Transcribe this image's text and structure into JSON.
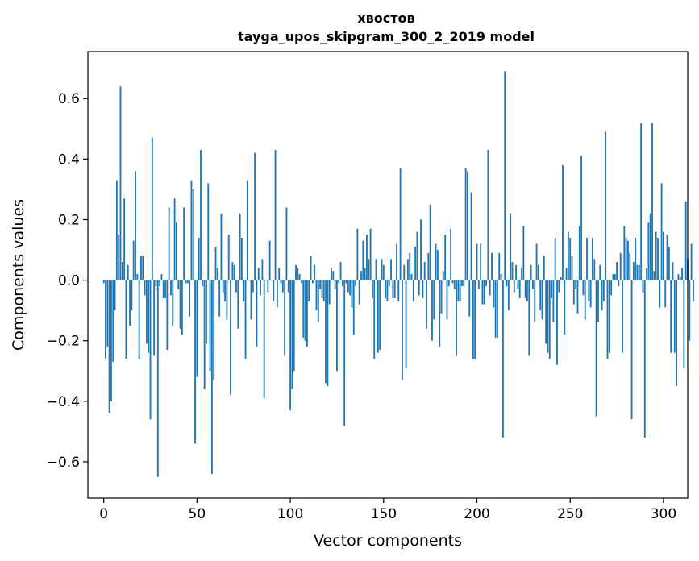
{
  "chart_data": {
    "type": "bar",
    "title": "хвостов",
    "subtitle": "tayga_upos_skipgram_300_2_2019 model",
    "xlabel": "Vector components",
    "ylabel": "Components values",
    "xlim": [
      -8.5,
      313
    ],
    "ylim": [
      -0.72,
      0.755
    ],
    "xticks": [
      0,
      50,
      100,
      150,
      200,
      250,
      300
    ],
    "yticks": [
      -0.6,
      -0.4,
      -0.2,
      0.0,
      0.2,
      0.4,
      0.6
    ],
    "xtick_labels": [
      "0",
      "50",
      "100",
      "150",
      "200",
      "250",
      "300"
    ],
    "ytick_labels": [
      "−0.6",
      "−0.4",
      "−0.2",
      "0.0",
      "0.2",
      "0.4",
      "0.6"
    ],
    "bar_color": "#1f77b4",
    "values": [
      -0.01,
      -0.26,
      -0.22,
      -0.44,
      -0.4,
      -0.27,
      -0.1,
      0.33,
      0.15,
      0.64,
      0.06,
      0.27,
      -0.26,
      0.05,
      -0.15,
      -0.1,
      0.13,
      0.36,
      0.02,
      -0.26,
      0.08,
      0.08,
      -0.05,
      -0.21,
      -0.24,
      -0.46,
      0.47,
      -0.25,
      -0.02,
      -0.65,
      -0.02,
      0.02,
      -0.06,
      -0.06,
      -0.23,
      0.24,
      -0.05,
      -0.15,
      0.27,
      0.19,
      -0.03,
      -0.16,
      -0.18,
      0.24,
      -0.01,
      -0.01,
      -0.12,
      0.33,
      0.3,
      -0.54,
      -0.32,
      0.14,
      0.43,
      -0.02,
      -0.36,
      -0.21,
      0.32,
      -0.3,
      -0.64,
      -0.33,
      0.11,
      0.04,
      -0.12,
      0.22,
      -0.04,
      -0.07,
      -0.13,
      0.15,
      -0.38,
      0.06,
      0.05,
      -0.04,
      -0.16,
      0.22,
      0.14,
      -0.07,
      -0.26,
      0.33,
      0.0,
      -0.13,
      -0.04,
      0.42,
      -0.22,
      0.04,
      -0.05,
      0.07,
      -0.39,
      0.0,
      -0.04,
      0.13,
      0.0,
      -0.07,
      0.43,
      -0.09,
      0.04,
      -0.01,
      -0.04,
      -0.25,
      0.24,
      -0.04,
      -0.43,
      -0.36,
      -0.3,
      0.05,
      0.04,
      0.02,
      -0.01,
      -0.19,
      -0.2,
      -0.22,
      -0.07,
      0.08,
      -0.01,
      0.05,
      -0.1,
      -0.14,
      -0.03,
      -0.06,
      -0.07,
      -0.34,
      -0.35,
      -0.08,
      0.04,
      0.03,
      -0.03,
      -0.3,
      -0.01,
      0.06,
      -0.02,
      -0.48,
      -0.01,
      -0.04,
      -0.05,
      -0.09,
      -0.18,
      -0.02,
      0.17,
      -0.08,
      0.03,
      0.13,
      0.04,
      0.15,
      0.07,
      0.17,
      -0.06,
      -0.26,
      0.07,
      -0.24,
      -0.23,
      0.07,
      0.05,
      -0.06,
      -0.07,
      -0.02,
      0.07,
      -0.06,
      -0.06,
      0.12,
      -0.07,
      0.37,
      -0.33,
      0.05,
      -0.29,
      0.07,
      0.09,
      0.02,
      -0.07,
      0.11,
      0.16,
      -0.05,
      0.2,
      -0.06,
      0.06,
      -0.16,
      0.09,
      0.25,
      -0.2,
      -0.13,
      0.12,
      0.1,
      -0.22,
      -0.11,
      0.03,
      0.15,
      -0.13,
      -0.02,
      0.17,
      -0.01,
      -0.03,
      -0.25,
      -0.07,
      -0.07,
      -0.02,
      -0.02,
      0.37,
      0.36,
      -0.12,
      0.29,
      -0.26,
      -0.26,
      0.12,
      -0.03,
      0.12,
      -0.08,
      -0.08,
      -0.02,
      0.43,
      -0.05,
      0.09,
      -0.09,
      -0.19,
      -0.19,
      0.09,
      0.02,
      -0.52,
      0.69,
      -0.02,
      -0.1,
      0.22,
      0.06,
      -0.04,
      0.05,
      -0.03,
      -0.06,
      0.04,
      0.18,
      -0.06,
      -0.07,
      -0.25,
      0.05,
      -0.03,
      -0.14,
      0.12,
      0.05,
      -0.1,
      -0.13,
      0.08,
      -0.21,
      -0.24,
      -0.26,
      -0.06,
      -0.14,
      0.14,
      -0.28,
      -0.04,
      0.01,
      0.38,
      -0.18,
      0.04,
      0.16,
      0.14,
      0.08,
      -0.08,
      -0.03,
      -0.11,
      0.18,
      0.41,
      -0.05,
      -0.13,
      0.14,
      -0.07,
      -0.09,
      0.14,
      0.07,
      -0.45,
      -0.14,
      0.05,
      -0.1,
      -0.07,
      0.49,
      -0.26,
      -0.24,
      -0.05,
      0.02,
      0.02,
      0.06,
      -0.02,
      0.09,
      -0.24,
      0.18,
      0.14,
      0.13,
      0.09,
      -0.46,
      0.06,
      0.14,
      0.05,
      0.05,
      0.52,
      -0.04,
      -0.52,
      0.04,
      0.19,
      0.22,
      0.52,
      0.03,
      0.16,
      0.14,
      -0.09,
      0.32,
      0.16,
      -0.09,
      0.15,
      0.11,
      -0.24,
      0.06,
      -0.24,
      -0.35,
      0.02,
      0.01,
      0.04,
      -0.29,
      0.26,
      0.07,
      -0.2,
      0.12,
      -0.07
    ]
  }
}
